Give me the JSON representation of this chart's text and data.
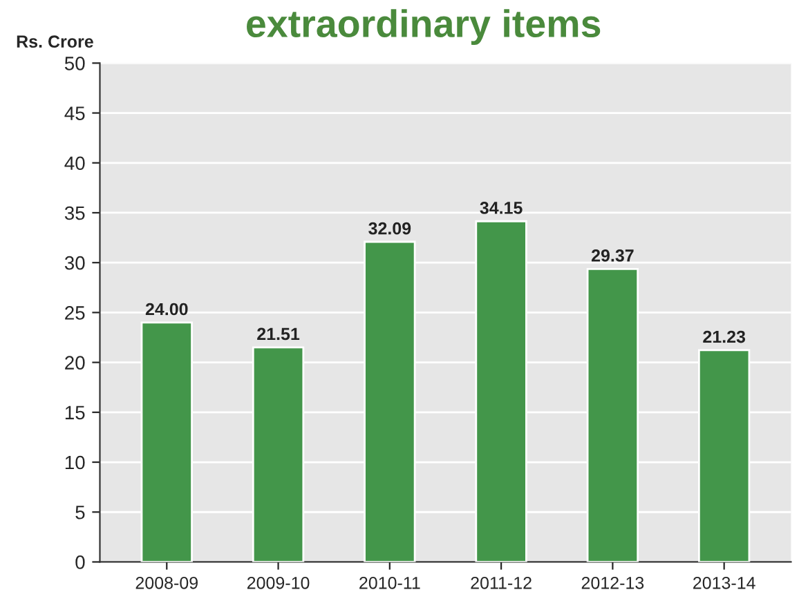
{
  "chart_data": {
    "type": "bar",
    "title": "extraordinary items",
    "ylabel": "Rs. Crore",
    "categories": [
      "2008-09",
      "2009-10",
      "2010-11",
      "2011-12",
      "2012-13",
      "2013-14"
    ],
    "values": [
      24.0,
      21.51,
      32.09,
      34.15,
      29.37,
      21.23
    ],
    "value_labels": [
      "24.00",
      "21.51",
      "32.09",
      "34.15",
      "29.37",
      "21.23"
    ],
    "color": "#43964a",
    "ylim": [
      0,
      50
    ],
    "yticks": [
      0,
      5,
      10,
      15,
      20,
      25,
      30,
      35,
      40,
      45,
      50
    ],
    "grid": "y"
  }
}
